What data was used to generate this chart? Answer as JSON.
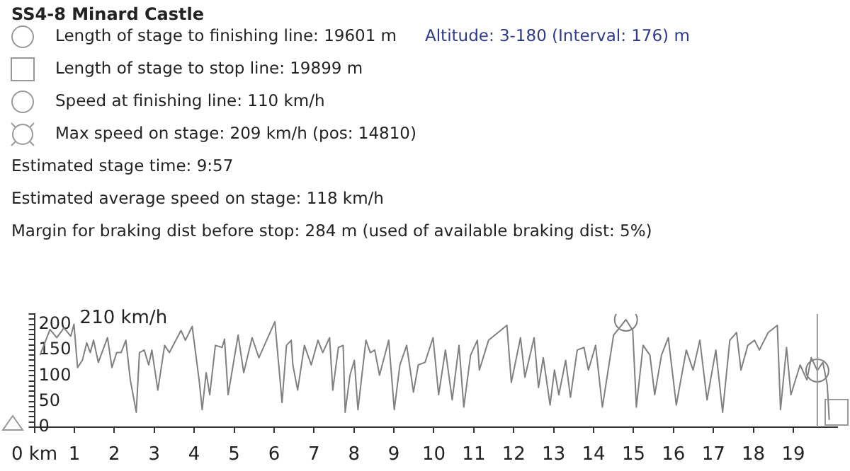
{
  "chart_data": {
    "type": "line",
    "title": "SS4-8 Minard Castle",
    "ylabel": "210 km/h",
    "annotations": [
      "Length of stage to finishing line: 19601 m",
      "Altitude: 3-180 (Interval: 176) m",
      "Length of stage to stop line: 19899 m",
      "Speed at finishing line: 110 km/h",
      "Max speed on stage: 209 km/h (pos: 14810)",
      "Estimated stage time: 9:57",
      "Estimated average speed on stage: 118 km/h",
      "Margin for braking dist before stop: 284 m (used of available braking dist: 5%)"
    ],
    "series": [
      {
        "type": "line",
        "color": "#808080",
        "marker": "none",
        "x": [
          0.14,
          0.39,
          0.56,
          0.74,
          0.91,
          0.99,
          1.08,
          1.2,
          1.31,
          1.4,
          1.48,
          1.6,
          1.83,
          1.94,
          2.06,
          2.17,
          2.29,
          2.4,
          2.55,
          2.63,
          2.75,
          2.86,
          2.94,
          3.09,
          3.26,
          3.38,
          3.67,
          3.78,
          3.95,
          4.13,
          4.2,
          4.3,
          4.39,
          4.53,
          4.7,
          4.76,
          4.85,
          5.1,
          5.24,
          5.45,
          5.62,
          6.02,
          6.2,
          6.31,
          6.43,
          6.47,
          6.59,
          6.76,
          6.93,
          7.1,
          7.22,
          7.39,
          7.47,
          7.61,
          7.73,
          7.78,
          7.9,
          8.01,
          8.1,
          8.3,
          8.41,
          8.52,
          8.64,
          8.87,
          9.01,
          9.15,
          9.32,
          9.49,
          9.61,
          9.78,
          9.98,
          10.12,
          10.29,
          10.46,
          10.63,
          10.75,
          10.92,
          11.09,
          11.14,
          11.37,
          11.83,
          11.94,
          12.17,
          12.28,
          12.51,
          12.62,
          12.74,
          12.91,
          13.02,
          13.13,
          13.3,
          13.42,
          13.59,
          13.76,
          13.87,
          14.05,
          14.22,
          14.5,
          14.81,
          14.98,
          15.07,
          15.24,
          15.41,
          15.53,
          15.7,
          15.87,
          16.07,
          16.32,
          16.49,
          16.66,
          16.84,
          17.06,
          17.23,
          17.41,
          17.58,
          17.69,
          17.86,
          18.03,
          18.15,
          18.37,
          18.6,
          18.68,
          18.83,
          18.94,
          19.17,
          19.34,
          19.45,
          19.601,
          19.74,
          19.85,
          19.9
        ],
        "values": [
          140,
          190,
          174,
          193,
          177,
          200,
          116,
          130,
          164,
          145,
          169,
          126,
          174,
          116,
          145,
          145,
          169,
          92,
          29,
          145,
          150,
          121,
          150,
          72,
          159,
          145,
          188,
          169,
          196,
          87,
          34,
          106,
          63,
          159,
          155,
          171,
          63,
          179,
          106,
          174,
          135,
          205,
          48,
          159,
          169,
          121,
          72,
          159,
          121,
          169,
          145,
          174,
          72,
          155,
          159,
          29,
          101,
          130,
          34,
          169,
          145,
          150,
          101,
          169,
          34,
          121,
          159,
          68,
          121,
          126,
          174,
          63,
          150,
          53,
          159,
          39,
          140,
          169,
          111,
          169,
          198,
          87,
          174,
          97,
          174,
          77,
          135,
          43,
          111,
          63,
          130,
          58,
          150,
          155,
          111,
          159,
          39,
          179,
          209,
          188,
          39,
          159,
          140,
          63,
          140,
          174,
          43,
          150,
          111,
          169,
          53,
          150,
          29,
          169,
          184,
          111,
          159,
          169,
          150,
          184,
          198,
          34,
          155,
          63,
          121,
          92,
          135,
          110,
          126,
          82,
          14
        ]
      },
      {
        "type": "scatter",
        "color": "#808080",
        "marker": "circle",
        "x": [
          14.81,
          19.601
        ],
        "values": [
          209,
          110
        ]
      }
    ],
    "xlim": [
      0,
      20.1
    ],
    "xticks": [
      {
        "value": 0,
        "label": "0 km"
      },
      1,
      2,
      3,
      4,
      5,
      6,
      7,
      8,
      9,
      10,
      11,
      12,
      13,
      14,
      15,
      16,
      17,
      18,
      19
    ],
    "ylim": [
      0,
      220
    ],
    "yticks": [
      0,
      {
        "value": 10,
        "label": null
      },
      {
        "value": 20,
        "label": null
      },
      {
        "value": 30,
        "label": null
      },
      {
        "value": 40,
        "label": null
      },
      50,
      {
        "value": 60,
        "label": null
      },
      {
        "value": 70,
        "label": null
      },
      {
        "value": 80,
        "label": null
      },
      {
        "value": 90,
        "label": null
      },
      100,
      {
        "value": 110,
        "label": null
      },
      {
        "value": 120,
        "label": null
      },
      {
        "value": 130,
        "label": null
      },
      {
        "value": 140,
        "label": null
      },
      150,
      {
        "value": 160,
        "label": null
      },
      {
        "value": 170,
        "label": null
      },
      {
        "value": 180,
        "label": null
      },
      {
        "value": 190,
        "label": null
      },
      200,
      {
        "value": 210,
        "label": null
      },
      {
        "value": 220,
        "label": null
      }
    ],
    "ref_lines": [
      {
        "axis": "x",
        "value": 19.601,
        "color": "#999999"
      }
    ],
    "grid": false
  }
}
